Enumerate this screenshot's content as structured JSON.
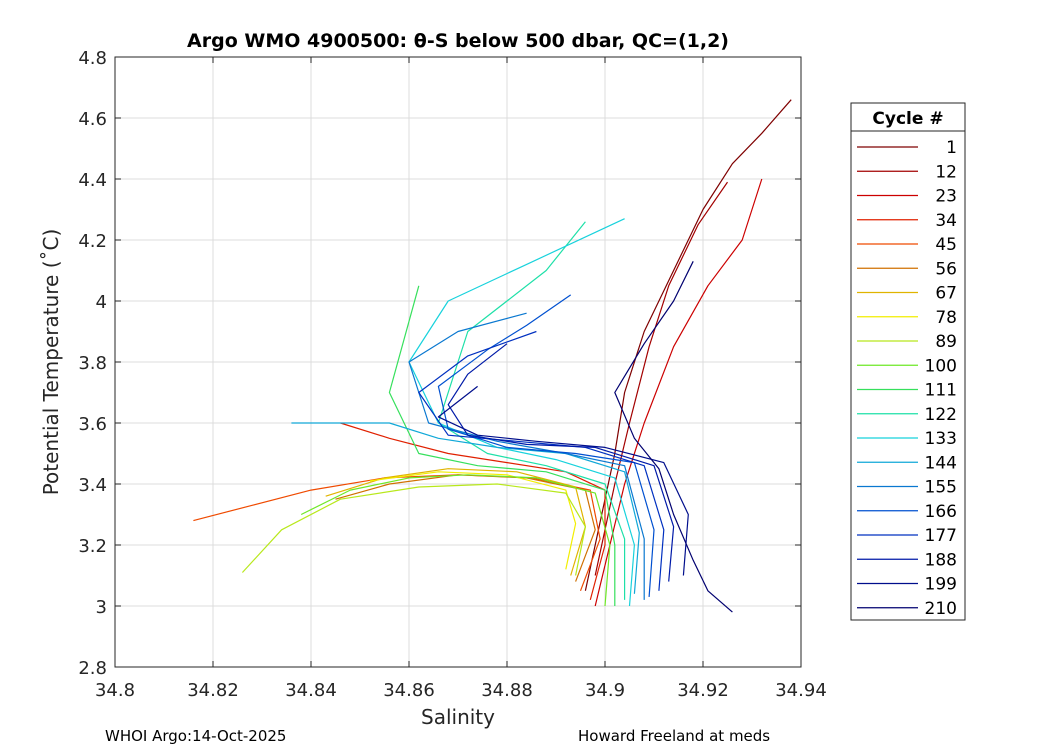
{
  "chart_data": {
    "type": "line",
    "title": "Argo WMO 4900500: θ-S below 500 dbar,  QC=(1,2)",
    "xlabel": "Salinity",
    "ylabel": "Potential Temperature (˚C)",
    "xlim": [
      34.8,
      34.94
    ],
    "ylim": [
      2.8,
      4.8
    ],
    "x_ticks": [
      34.8,
      34.82,
      34.84,
      34.86,
      34.88,
      34.9,
      34.92,
      34.94
    ],
    "x_tick_labels": [
      "34.8",
      "34.82",
      "34.84",
      "34.86",
      "34.88",
      "34.9",
      "34.92",
      "34.94"
    ],
    "y_ticks": [
      2.8,
      3.0,
      3.2,
      3.4,
      3.6,
      3.8,
      4.0,
      4.2,
      4.4,
      4.6,
      4.8
    ],
    "y_tick_labels": [
      "2.8",
      "3",
      "3.2",
      "3.4",
      "3.6",
      "3.8",
      "4",
      "4.2",
      "4.4",
      "4.6",
      "4.8"
    ],
    "grid": true,
    "legend": {
      "title": "Cycle #",
      "placement": "right",
      "entries": [
        {
          "label": "1",
          "color": "#7f0000"
        },
        {
          "label": "12",
          "color": "#a30000"
        },
        {
          "label": "23",
          "color": "#cc0000"
        },
        {
          "label": "34",
          "color": "#e02000"
        },
        {
          "label": "45",
          "color": "#ef4a00"
        },
        {
          "label": "56",
          "color": "#d07000"
        },
        {
          "label": "67",
          "color": "#e0b400"
        },
        {
          "label": "78",
          "color": "#f2ee00"
        },
        {
          "label": "89",
          "color": "#b8e81c"
        },
        {
          "label": "100",
          "color": "#6ee826"
        },
        {
          "label": "111",
          "color": "#36e05c"
        },
        {
          "label": "122",
          "color": "#1ee0a8"
        },
        {
          "label": "133",
          "color": "#18d2dc"
        },
        {
          "label": "144",
          "color": "#10a8d8"
        },
        {
          "label": "155",
          "color": "#0a78d0"
        },
        {
          "label": "166",
          "color": "#0050d0"
        },
        {
          "label": "177",
          "color": "#0030c0"
        },
        {
          "label": "188",
          "color": "#001aa8"
        },
        {
          "label": "199",
          "color": "#000e8c"
        },
        {
          "label": "210",
          "color": "#000070"
        }
      ]
    },
    "series": [
      {
        "name": "1",
        "color": "#7f0000",
        "x": [
          34.896,
          34.898,
          34.9,
          34.902,
          34.904,
          34.908,
          34.914,
          34.92,
          34.926,
          34.932,
          34.938
        ],
        "y": [
          3.05,
          3.2,
          3.35,
          3.5,
          3.7,
          3.9,
          4.1,
          4.3,
          4.45,
          4.55,
          4.66
        ]
      },
      {
        "name": "12",
        "color": "#a30000",
        "x": [
          34.898,
          34.9,
          34.902,
          34.905,
          34.909,
          34.913,
          34.919,
          34.925
        ],
        "y": [
          3.1,
          3.25,
          3.4,
          3.6,
          3.85,
          4.05,
          4.25,
          4.39
        ]
      },
      {
        "name": "23",
        "color": "#cc0000",
        "x": [
          34.898,
          34.901,
          34.904,
          34.908,
          34.914,
          34.921,
          34.928,
          34.932
        ],
        "y": [
          3.0,
          3.2,
          3.4,
          3.6,
          3.85,
          4.05,
          4.2,
          4.4
        ]
      },
      {
        "name": "34",
        "color": "#e02000",
        "x": [
          34.897,
          34.9,
          34.9,
          34.892,
          34.88,
          34.868,
          34.856,
          34.846
        ],
        "y": [
          3.02,
          3.2,
          3.38,
          3.44,
          3.47,
          3.5,
          3.55,
          3.6
        ]
      },
      {
        "name": "45",
        "color": "#ef4a00",
        "x": [
          34.895,
          34.899,
          34.897,
          34.885,
          34.87,
          34.855,
          34.84,
          34.828,
          34.816
        ],
        "y": [
          3.05,
          3.22,
          3.38,
          3.42,
          3.43,
          3.42,
          3.38,
          3.33,
          3.28
        ]
      },
      {
        "name": "56",
        "color": "#d07000",
        "x": [
          34.894,
          34.898,
          34.896,
          34.884,
          34.87,
          34.856,
          34.845
        ],
        "y": [
          3.08,
          3.25,
          3.38,
          3.42,
          3.43,
          3.4,
          3.35
        ]
      },
      {
        "name": "67",
        "color": "#e0b400",
        "x": [
          34.893,
          34.896,
          34.894,
          34.882,
          34.868,
          34.855,
          34.843
        ],
        "y": [
          3.1,
          3.26,
          3.39,
          3.44,
          3.45,
          3.42,
          3.36
        ]
      },
      {
        "name": "78",
        "color": "#f2ee00",
        "x": [
          34.892,
          34.894,
          34.892,
          34.88,
          34.866,
          34.852
        ],
        "y": [
          3.12,
          3.27,
          3.38,
          3.43,
          3.44,
          3.41
        ]
      },
      {
        "name": "89",
        "color": "#b8e81c",
        "x": [
          34.894,
          34.896,
          34.892,
          34.878,
          34.862,
          34.846,
          34.834,
          34.826
        ],
        "y": [
          3.1,
          3.26,
          3.37,
          3.4,
          3.39,
          3.35,
          3.25,
          3.11
        ]
      },
      {
        "name": "100",
        "color": "#6ee826",
        "x": [
          34.9,
          34.901,
          34.898,
          34.886,
          34.872,
          34.86,
          34.848,
          34.838
        ],
        "y": [
          3.0,
          3.2,
          3.37,
          3.42,
          3.43,
          3.42,
          3.38,
          3.3
        ]
      },
      {
        "name": "111",
        "color": "#36e05c",
        "x": [
          34.902,
          34.902,
          34.9,
          34.888,
          34.874,
          34.862,
          34.856,
          34.862
        ],
        "y": [
          3.0,
          3.2,
          3.38,
          3.44,
          3.46,
          3.5,
          3.7,
          4.05
        ]
      },
      {
        "name": "122",
        "color": "#1ee0a8",
        "x": [
          34.904,
          34.904,
          34.9,
          34.888,
          34.876,
          34.866,
          34.872,
          34.888,
          34.896
        ],
        "y": [
          3.02,
          3.22,
          3.4,
          3.46,
          3.5,
          3.6,
          3.9,
          4.1,
          4.26
        ]
      },
      {
        "name": "133",
        "color": "#18d2dc",
        "x": [
          34.905,
          34.906,
          34.902,
          34.89,
          34.878,
          34.866,
          34.86,
          34.868,
          34.884,
          34.904
        ],
        "y": [
          3.0,
          3.2,
          3.42,
          3.48,
          3.52,
          3.6,
          3.8,
          4.0,
          4.12,
          4.27
        ]
      },
      {
        "name": "144",
        "color": "#10a8d8",
        "x": [
          34.906,
          34.907,
          34.904,
          34.892,
          34.878,
          34.866,
          34.856,
          34.842,
          34.836
        ],
        "y": [
          3.04,
          3.24,
          3.44,
          3.5,
          3.52,
          3.55,
          3.6,
          3.6,
          3.6
        ]
      },
      {
        "name": "155",
        "color": "#0a78d0",
        "x": [
          34.908,
          34.908,
          34.904,
          34.892,
          34.878,
          34.864,
          34.86,
          34.87,
          34.884
        ],
        "y": [
          3.02,
          3.22,
          3.46,
          3.5,
          3.54,
          3.6,
          3.8,
          3.9,
          3.96
        ]
      },
      {
        "name": "166",
        "color": "#0050d0",
        "x": [
          34.909,
          34.91,
          34.906,
          34.894,
          34.88,
          34.868,
          34.866,
          34.876,
          34.884,
          34.893
        ],
        "y": [
          3.03,
          3.25,
          3.47,
          3.5,
          3.52,
          3.58,
          3.72,
          3.84,
          3.92,
          4.02
        ]
      },
      {
        "name": "177",
        "color": "#0030c0",
        "x": [
          34.911,
          34.912,
          34.908,
          34.896,
          34.882,
          34.868,
          34.862,
          34.872,
          34.886
        ],
        "y": [
          3.05,
          3.25,
          3.46,
          3.52,
          3.54,
          3.56,
          3.7,
          3.82,
          3.9
        ]
      },
      {
        "name": "188",
        "color": "#001aa8",
        "x": [
          34.913,
          34.914,
          34.91,
          34.898,
          34.884,
          34.872,
          34.868,
          34.872,
          34.88
        ],
        "y": [
          3.08,
          3.26,
          3.46,
          3.52,
          3.53,
          3.56,
          3.66,
          3.76,
          3.86
        ]
      },
      {
        "name": "199",
        "color": "#000e8c",
        "x": [
          34.916,
          34.917,
          34.912,
          34.9,
          34.886,
          34.874,
          34.866,
          34.874
        ],
        "y": [
          3.1,
          3.3,
          3.47,
          3.52,
          3.54,
          3.56,
          3.62,
          3.72
        ]
      },
      {
        "name": "210",
        "color": "#000070",
        "x": [
          34.926,
          34.921,
          34.918,
          34.914,
          34.911,
          34.906,
          34.902,
          34.908,
          34.914,
          34.918
        ],
        "y": [
          2.98,
          3.05,
          3.15,
          3.3,
          3.45,
          3.55,
          3.7,
          3.86,
          4.0,
          4.13
        ]
      }
    ]
  },
  "footer": {
    "left": "WHOI Argo:14-Oct-2025",
    "right": "Howard Freeland at meds"
  }
}
